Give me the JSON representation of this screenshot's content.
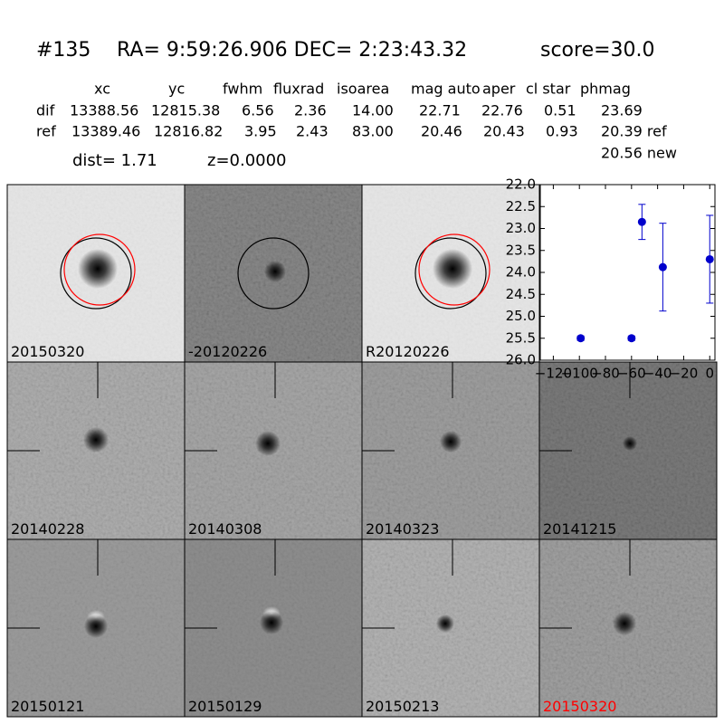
{
  "header": {
    "id": "#135",
    "coords": "RA= 9:59:26.906 DEC= 2:23:43.32",
    "score": "score=30.0"
  },
  "table": {
    "columns": [
      "xc",
      "yc",
      "fwhm",
      "fluxrad",
      "isoarea",
      "mag auto",
      "aper",
      "cl star",
      "phmag"
    ],
    "rows": [
      [
        "dif",
        "13388.56",
        "12815.38",
        "6.56",
        "2.36",
        "14.00",
        "22.71",
        "22.76",
        "0.51",
        "23.69"
      ],
      [
        "ref",
        "13389.46",
        "12816.82",
        "3.95",
        "2.43",
        "83.00",
        "20.46",
        "20.43",
        "0.93",
        "20.39 ref"
      ]
    ],
    "extra": "20.56 new"
  },
  "summary": {
    "dist": "dist=  1.71",
    "z": "z=0.0000"
  },
  "stamps": [
    {
      "label": "20150320"
    },
    {
      "label": "-20120226"
    },
    {
      "label": "R20120226"
    },
    {
      "label": "20140228"
    },
    {
      "label": "20140308"
    },
    {
      "label": "20140323"
    },
    {
      "label": "20141215"
    },
    {
      "label": "20150121"
    },
    {
      "label": "20150129"
    },
    {
      "label": "20150213"
    },
    {
      "label": "20150320",
      "color": "#ff0000"
    }
  ],
  "chart_data": {
    "type": "errorbar",
    "color": "#0000cc",
    "x": [
      -99,
      -60,
      -52,
      -36,
      0
    ],
    "values": [
      25.5,
      25.5,
      22.85,
      23.88,
      23.7
    ],
    "errors": [
      0.05,
      0.05,
      0.4,
      1.0,
      1.0
    ],
    "xlim": [
      -130,
      4
    ],
    "ylim": [
      26,
      22
    ],
    "xticks": [
      {
        "value": -120,
        "label": "−120"
      },
      {
        "value": -100,
        "label": "−100"
      },
      {
        "value": -80,
        "label": "−80"
      },
      {
        "value": -60,
        "label": "−60"
      },
      {
        "value": -40,
        "label": "−40"
      },
      {
        "value": -20,
        "label": "−20"
      },
      0
    ],
    "yticks": [
      {
        "value": 22,
        "label": "22.0"
      },
      22.5,
      {
        "value": 23,
        "label": "23.0"
      },
      23.5,
      {
        "value": 24,
        "label": "24.0"
      },
      24.5,
      {
        "value": 25,
        "label": "25.0"
      },
      25.5,
      {
        "value": 26,
        "label": "26.0"
      }
    ]
  }
}
